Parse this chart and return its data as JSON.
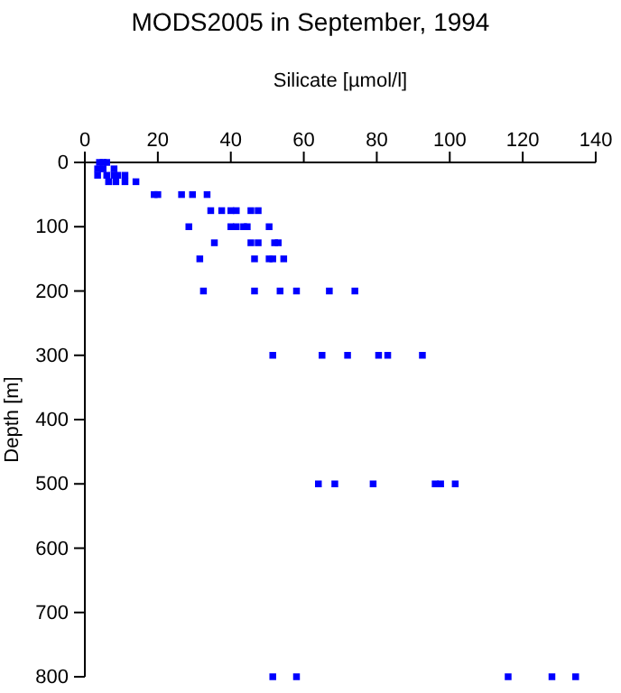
{
  "chart_data": {
    "type": "scatter",
    "title": "MODS2005 in September, 1994",
    "xlabel": "Silicate [µmol/l]",
    "ylabel": "Depth [m]",
    "xlim": [
      0,
      140
    ],
    "xticks": [
      0,
      20,
      40,
      60,
      80,
      100,
      120,
      140
    ],
    "ylim": [
      800,
      0
    ],
    "yticks": [
      0,
      100,
      200,
      300,
      400,
      500,
      600,
      700,
      800
    ],
    "marker": "square",
    "grid": false,
    "series": [
      {
        "color": "#0000ff",
        "x": [
          4,
          5,
          6,
          3.5,
          5,
          8,
          3.5,
          6,
          8,
          9,
          11,
          6.5,
          8.5,
          11,
          14,
          19,
          20,
          26.5,
          29.5,
          33.5,
          34.5,
          37.5,
          40,
          41.5,
          45.5,
          47.5,
          28.5,
          40,
          41.5,
          43.5,
          44.5,
          50.5,
          35.5,
          45.5,
          47.5,
          52,
          53,
          31.5,
          46.5,
          50.5,
          51.5,
          54.5,
          32.5,
          46.5,
          53.5,
          58,
          67,
          74,
          51.5,
          65,
          72,
          80.5,
          83,
          92.5,
          64,
          68.5,
          79,
          96,
          97.5,
          101.5,
          51.5,
          58,
          116,
          128,
          134.5
        ],
        "values": [
          0,
          0,
          0,
          10,
          10,
          10,
          20,
          20,
          20,
          20,
          20,
          30,
          30,
          30,
          30,
          50,
          50,
          50,
          50,
          50,
          75,
          75,
          75,
          75,
          75,
          75,
          100,
          100,
          100,
          100,
          100,
          100,
          125,
          125,
          125,
          125,
          125,
          150,
          150,
          150,
          150,
          150,
          200,
          200,
          200,
          200,
          200,
          200,
          300,
          300,
          300,
          300,
          300,
          300,
          500,
          500,
          500,
          500,
          500,
          500,
          800,
          800,
          800,
          800,
          800
        ]
      }
    ]
  }
}
